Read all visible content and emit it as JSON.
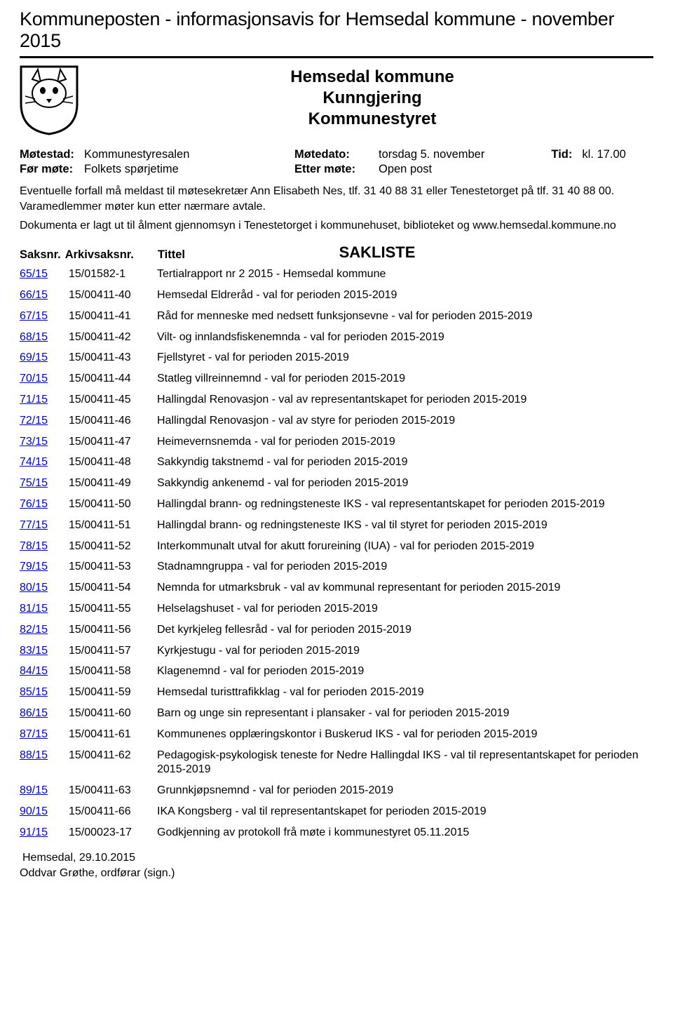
{
  "colors": {
    "link": "#0000cc",
    "text": "#000000",
    "rule": "#000000",
    "background": "#ffffff"
  },
  "banner": "Kommuneposten - informasjonsavis for Hemsedal kommune - november 2015",
  "title": {
    "line1": "Hemsedal kommune",
    "line2": "Kunngjering",
    "line3": "Kommunestyret"
  },
  "meta": {
    "motestad_label": "Møtestad:",
    "motestad_value": "Kommunestyresalen",
    "motedato_label": "Møtedato:",
    "motedato_value": "torsdag 5. november",
    "tid_label": "Tid:",
    "tid_value": "kl. 17.00",
    "for_mote_label": "Før møte:",
    "for_mote_value": "Folkets spørjetime",
    "etter_mote_label": "Etter møte:",
    "etter_mote_value": "Open post"
  },
  "intro": {
    "p1": "Eventuelle forfall må meldast til møtesekretær Ann Elisabeth Nes, tlf. 31 40 88 31 eller Tenestetorget på tlf. 31 40 88 00. Varamedlemmer møter kun etter nærmare avtale.",
    "p2": "Dokumenta er lagt ut til ålment gjennomsyn i Tenestetorget i kommunehuset, biblioteket og www.hemsedal.kommune.no"
  },
  "sakliste": {
    "title": "SAKLISTE",
    "col1": "Saksnr.",
    "col2": "Arkivsaksnr.",
    "col3": "Tittel",
    "rows": [
      {
        "saksnr": "65/15",
        "arkiv": "15/01582-1",
        "tittel": "Tertialrapport nr 2 2015 - Hemsedal kommune"
      },
      {
        "saksnr": "66/15",
        "arkiv": "15/00411-40",
        "tittel": "Hemsedal Eldreråd - val for perioden 2015-2019"
      },
      {
        "saksnr": "67/15",
        "arkiv": "15/00411-41",
        "tittel": "Råd for menneske med nedsett funksjonsevne - val for perioden 2015-2019"
      },
      {
        "saksnr": "68/15",
        "arkiv": "15/00411-42",
        "tittel": "Vilt- og innlandsfiskenemnda - val for perioden 2015-2019"
      },
      {
        "saksnr": "69/15",
        "arkiv": "15/00411-43",
        "tittel": "Fjellstyret - val for perioden 2015-2019"
      },
      {
        "saksnr": "70/15",
        "arkiv": "15/00411-44",
        "tittel": "Statleg villreinnemnd - val for perioden 2015-2019"
      },
      {
        "saksnr": "71/15",
        "arkiv": "15/00411-45",
        "tittel": "Hallingdal Renovasjon - val av representantskapet for perioden 2015-2019"
      },
      {
        "saksnr": "72/15",
        "arkiv": "15/00411-46",
        "tittel": "Hallingdal Renovasjon - val av styre for perioden 2015-2019"
      },
      {
        "saksnr": "73/15",
        "arkiv": "15/00411-47",
        "tittel": "Heimevernsnemda - val for perioden 2015-2019"
      },
      {
        "saksnr": "74/15",
        "arkiv": "15/00411-48",
        "tittel": "Sakkyndig takstnemd - val for perioden 2015-2019"
      },
      {
        "saksnr": "75/15",
        "arkiv": "15/00411-49",
        "tittel": "Sakkyndig ankenemd - val for perioden 2015-2019"
      },
      {
        "saksnr": "76/15",
        "arkiv": "15/00411-50",
        "tittel": "Hallingdal brann- og redningsteneste IKS - val representantskapet for perioden 2015-2019"
      },
      {
        "saksnr": "77/15",
        "arkiv": "15/00411-51",
        "tittel": "Hallingdal brann- og redningsteneste IKS - val til styret for perioden 2015-2019"
      },
      {
        "saksnr": "78/15",
        "arkiv": "15/00411-52",
        "tittel": "Interkommunalt utval for akutt forureining (IUA) - val for perioden 2015-2019"
      },
      {
        "saksnr": "79/15",
        "arkiv": "15/00411-53",
        "tittel": "Stadnamngruppa - val for perioden 2015-2019"
      },
      {
        "saksnr": "80/15",
        "arkiv": "15/00411-54",
        "tittel": "Nemnda for utmarksbruk - val av kommunal representant for perioden 2015-2019"
      },
      {
        "saksnr": "81/15",
        "arkiv": "15/00411-55",
        "tittel": "Helselagshuset - val for perioden 2015-2019"
      },
      {
        "saksnr": "82/15",
        "arkiv": "15/00411-56",
        "tittel": "Det kyrkjeleg fellesråd - val for perioden 2015-2019"
      },
      {
        "saksnr": "83/15",
        "arkiv": "15/00411-57",
        "tittel": "Kyrkjestugu - val for perioden 2015-2019"
      },
      {
        "saksnr": "84/15",
        "arkiv": "15/00411-58",
        "tittel": "Klagenemnd - val for perioden 2015-2019"
      },
      {
        "saksnr": "85/15",
        "arkiv": "15/00411-59",
        "tittel": "Hemsedal turisttrafikklag - val for perioden 2015-2019"
      },
      {
        "saksnr": "86/15",
        "arkiv": "15/00411-60",
        "tittel": "Barn og unge sin representant i plansaker - val for perioden 2015-2019"
      },
      {
        "saksnr": "87/15",
        "arkiv": "15/00411-61",
        "tittel": "Kommunenes opplæringskontor i Buskerud IKS - val for perioden 2015-2019"
      },
      {
        "saksnr": "88/15",
        "arkiv": "15/00411-62",
        "tittel": "Pedagogisk-psykologisk teneste for Nedre Hallingdal IKS - val til representantskapet for perioden 2015-2019"
      },
      {
        "saksnr": "89/15",
        "arkiv": "15/00411-63",
        "tittel": "Grunnkjøpsnemnd - val for perioden 2015-2019"
      },
      {
        "saksnr": "90/15",
        "arkiv": "15/00411-66",
        "tittel": "IKA Kongsberg - val til representantskapet for perioden 2015-2019"
      },
      {
        "saksnr": "91/15",
        "arkiv": "15/00023-17",
        "tittel": "Godkjenning av protokoll frå møte i kommunestyret 05.11.2015"
      }
    ]
  },
  "footer": {
    "place_date": "Hemsedal, 29.10.2015",
    "signer": "Oddvar Grøthe,  ordførar   (sign.)"
  }
}
